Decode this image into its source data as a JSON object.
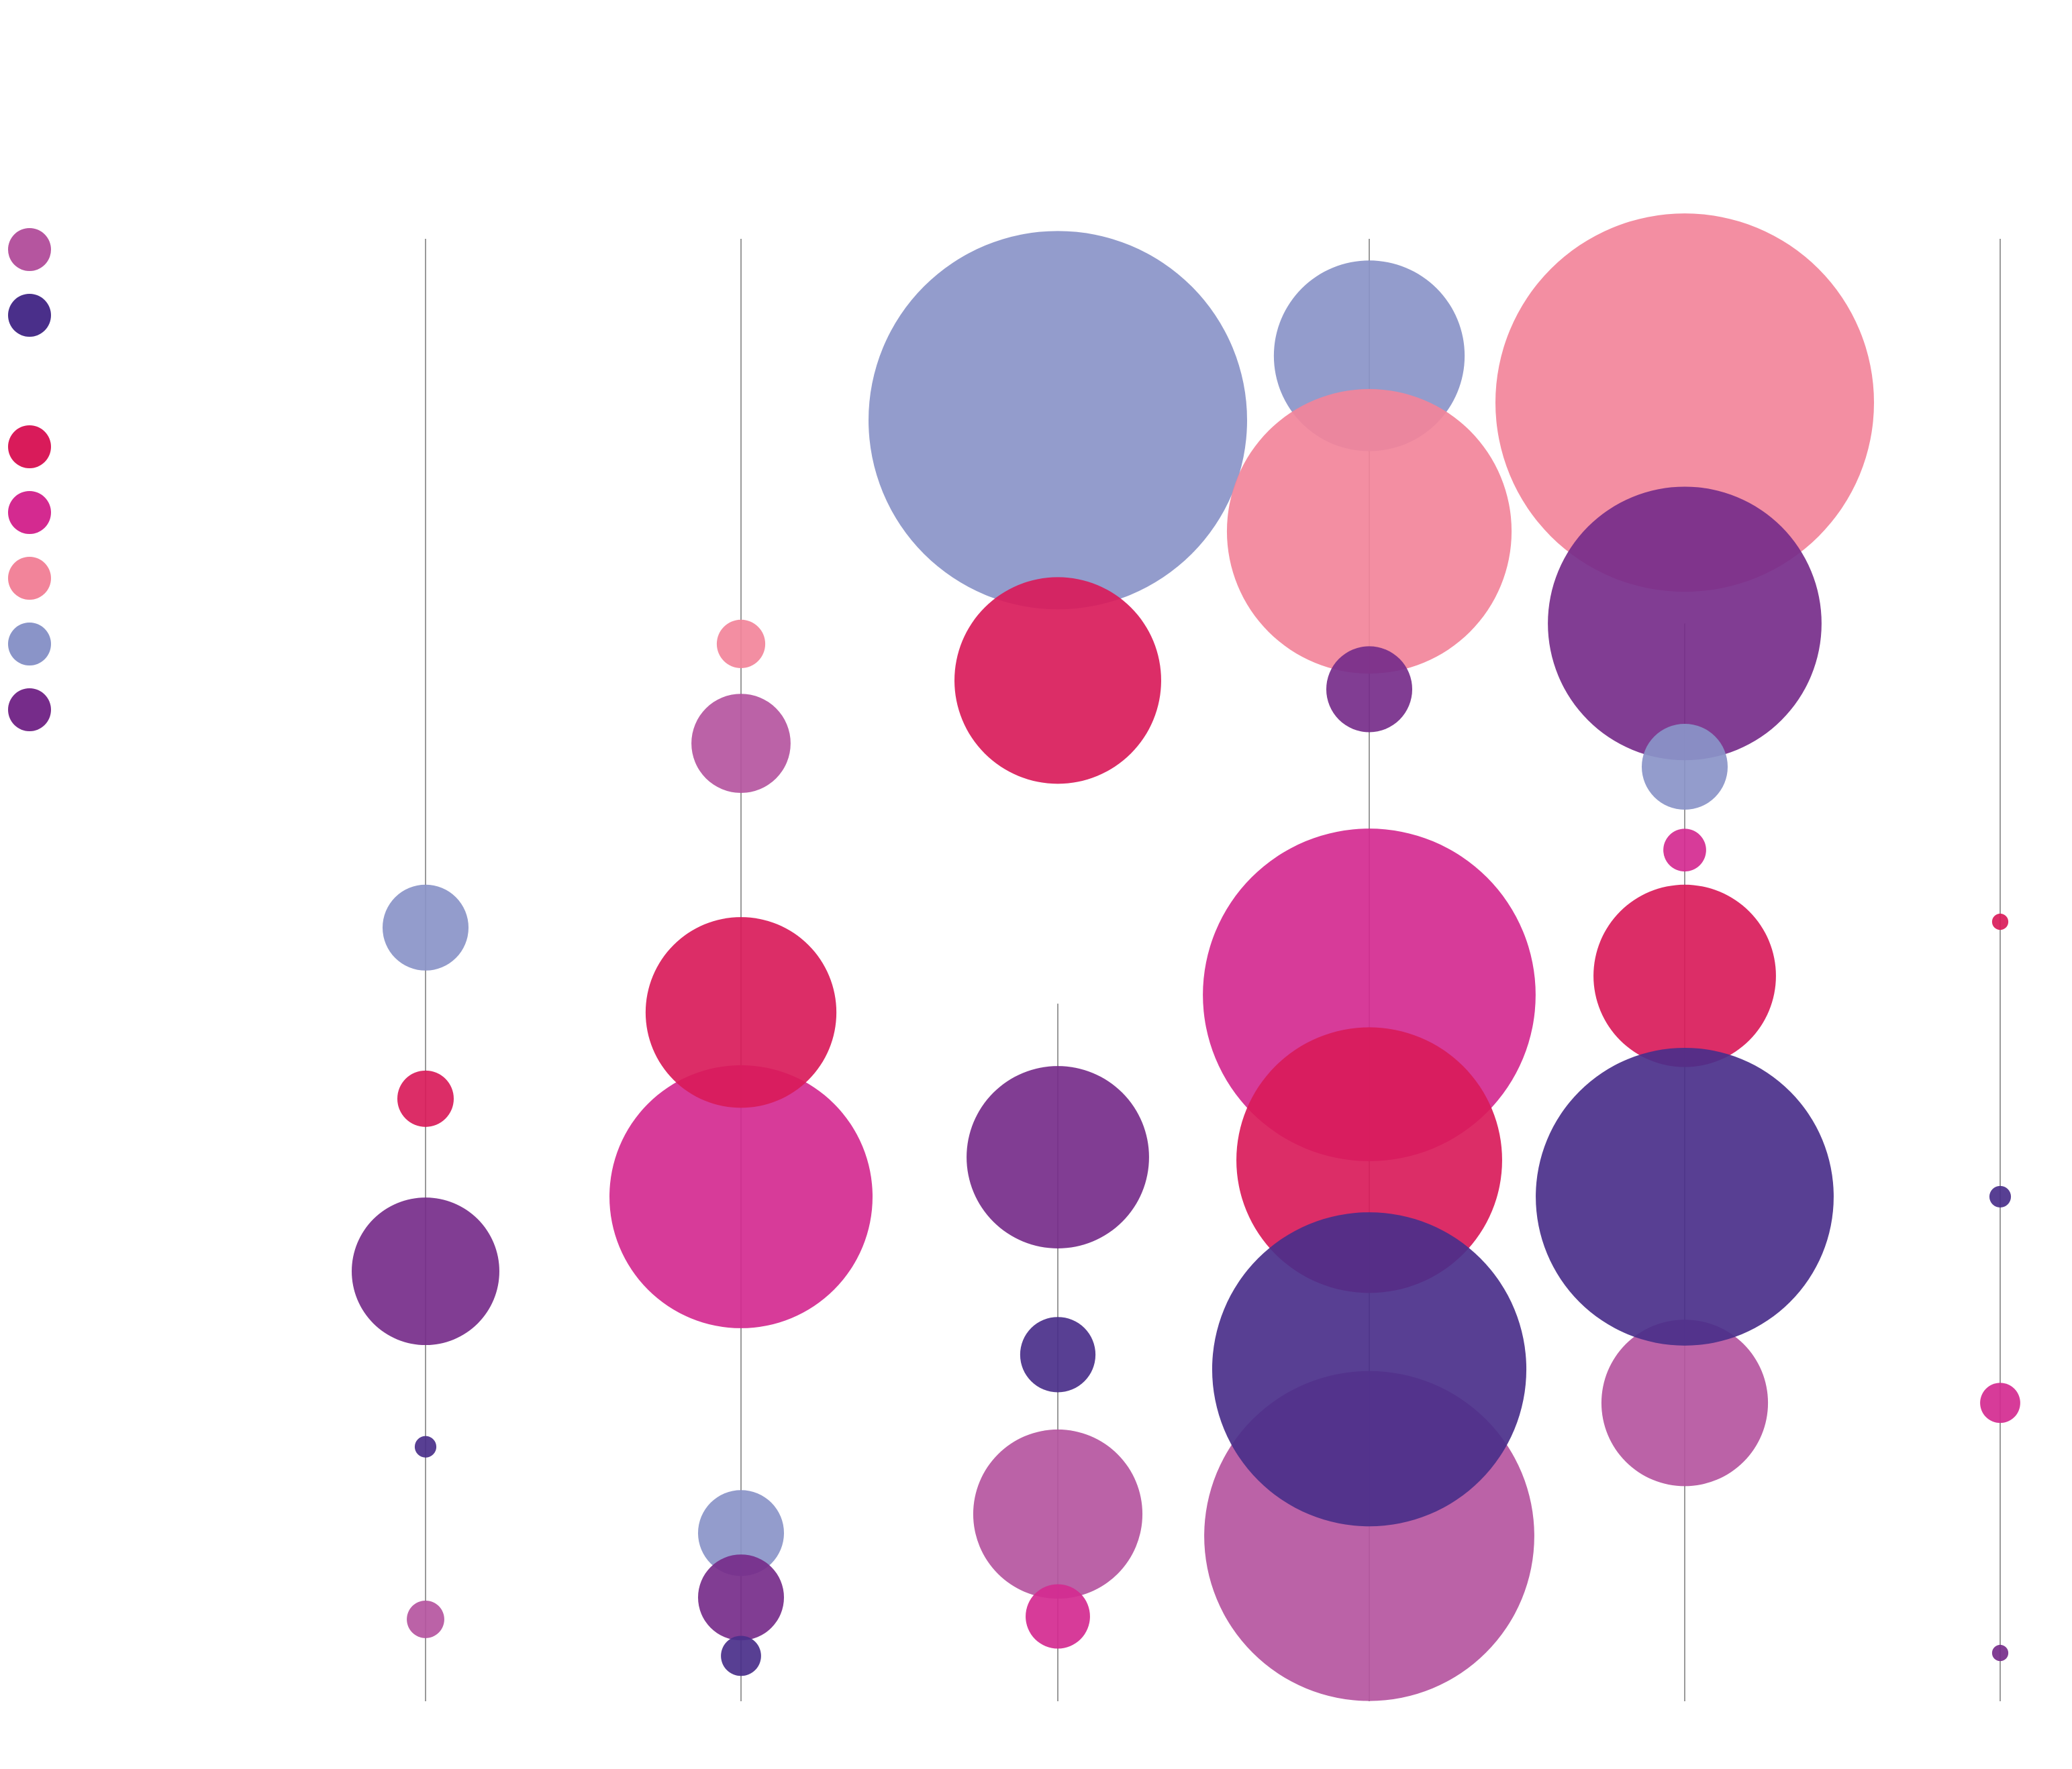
{
  "chart_data": {
    "type": "bubble",
    "title": "",
    "xlabel": "",
    "ylabel": "",
    "x_categories_count": 6,
    "ylim": [
      0,
      100
    ],
    "size_scale_max": 100,
    "grid": false,
    "legend": {
      "placement": "left",
      "colors": [
        "#b5559f",
        "#4a2f8a",
        null,
        "#d91b5a",
        "#d42a90",
        "#f2849a",
        "#8a94c8",
        "#762c8a"
      ]
    },
    "series_colors": {
      "orchid": "#b5559f",
      "indigo": "#4a2f8a",
      "crimson": "#d91b5a",
      "magenta": "#d42a90",
      "pink": "#f2849a",
      "periwinkle": "#8a94c8",
      "purple": "#762c8a"
    },
    "stems": [
      {
        "x": 1,
        "y_range": [
          0,
          100
        ]
      },
      {
        "x": 2,
        "y_range": [
          0,
          100
        ]
      },
      {
        "x": 3,
        "y_range": [
          0,
          47.7
        ]
      },
      {
        "x": 4,
        "y_range": [
          0,
          100
        ]
      },
      {
        "x": 5,
        "y_range": [
          0,
          73.7
        ]
      },
      {
        "x": 6,
        "y_range": [
          0,
          100
        ]
      }
    ],
    "points": [
      {
        "x": 1,
        "y": 52.9,
        "size": 22.7,
        "series": "periwinkle"
      },
      {
        "x": 1,
        "y": 41.2,
        "size": 14.9,
        "series": "crimson"
      },
      {
        "x": 1,
        "y": 29.4,
        "size": 39.0,
        "series": "purple"
      },
      {
        "x": 1,
        "y": 17.4,
        "size": 5.7,
        "series": "indigo"
      },
      {
        "x": 1,
        "y": 5.6,
        "size": 9.9,
        "series": "orchid"
      },
      {
        "x": 2,
        "y": 72.3,
        "size": 12.8,
        "series": "pink"
      },
      {
        "x": 2,
        "y": 65.5,
        "size": 26.2,
        "series": "orchid"
      },
      {
        "x": 2,
        "y": 34.5,
        "size": 69.5,
        "series": "magenta"
      },
      {
        "x": 2,
        "y": 47.1,
        "size": 50.4,
        "series": "crimson"
      },
      {
        "x": 2,
        "y": 11.5,
        "size": 22.7,
        "series": "periwinkle"
      },
      {
        "x": 2,
        "y": 7.1,
        "size": 22.7,
        "series": "purple"
      },
      {
        "x": 2,
        "y": 3.1,
        "size": 10.6,
        "series": "indigo"
      },
      {
        "x": 3,
        "y": 87.6,
        "size": 100,
        "series": "periwinkle"
      },
      {
        "x": 3,
        "y": 69.8,
        "size": 54.6,
        "series": "crimson"
      },
      {
        "x": 3,
        "y": 37.2,
        "size": 48.2,
        "series": "purple"
      },
      {
        "x": 3,
        "y": 23.7,
        "size": 19.9,
        "series": "indigo"
      },
      {
        "x": 3,
        "y": 12.8,
        "size": 44.7,
        "series": "orchid"
      },
      {
        "x": 3,
        "y": 5.8,
        "size": 17.0,
        "series": "magenta"
      },
      {
        "x": 4,
        "y": 92.0,
        "size": 50.4,
        "series": "periwinkle"
      },
      {
        "x": 4,
        "y": 80.0,
        "size": 75.2,
        "series": "pink"
      },
      {
        "x": 4,
        "y": 69.2,
        "size": 22.7,
        "series": "purple"
      },
      {
        "x": 4,
        "y": 48.3,
        "size": 87.9,
        "series": "magenta"
      },
      {
        "x": 4,
        "y": 37.0,
        "size": 70.2,
        "series": "crimson"
      },
      {
        "x": 4,
        "y": 11.3,
        "size": 87.2,
        "series": "orchid"
      },
      {
        "x": 4,
        "y": 22.7,
        "size": 83.0,
        "series": "indigo"
      },
      {
        "x": 5,
        "y": 88.8,
        "size": 100,
        "series": "pink"
      },
      {
        "x": 5,
        "y": 73.7,
        "size": 72.3,
        "series": "purple"
      },
      {
        "x": 5,
        "y": 63.9,
        "size": 22.7,
        "series": "periwinkle"
      },
      {
        "x": 5,
        "y": 58.2,
        "size": 11.3,
        "series": "magenta"
      },
      {
        "x": 5,
        "y": 49.6,
        "size": 48.2,
        "series": "crimson"
      },
      {
        "x": 5,
        "y": 20.4,
        "size": 44.0,
        "series": "orchid"
      },
      {
        "x": 5,
        "y": 34.5,
        "size": 78.7,
        "series": "indigo"
      },
      {
        "x": 6,
        "y": 53.3,
        "size": 4.3,
        "series": "crimson"
      },
      {
        "x": 6,
        "y": 34.5,
        "size": 5.7,
        "series": "indigo"
      },
      {
        "x": 6,
        "y": 20.4,
        "size": 10.6,
        "series": "magenta"
      },
      {
        "x": 6,
        "y": 3.3,
        "size": 4.3,
        "series": "purple"
      }
    ]
  }
}
